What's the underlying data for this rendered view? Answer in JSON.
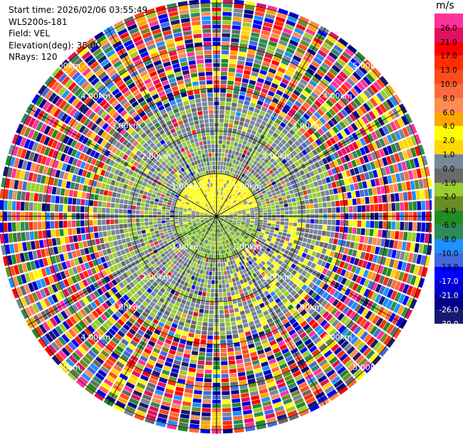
{
  "info": {
    "start_time": "Start time: 2026/02/06 03:55:49",
    "instrument": "WLS200s-181",
    "field": "Field: VEL",
    "elevation": "Elevation(deg): 35.00",
    "nrays": "NRays: 120"
  },
  "colorbar": {
    "unit": "m/s",
    "levels": [
      {
        "label": "26.0",
        "color": "#ff3399"
      },
      {
        "label": "21.0",
        "color": "#e0115f"
      },
      {
        "label": "17.0",
        "color": "#ff0000"
      },
      {
        "label": "13.0",
        "color": "#ff2d00"
      },
      {
        "label": "10.0",
        "color": "#ff4a1c"
      },
      {
        "label": "8.0",
        "color": "#ff6a3d"
      },
      {
        "label": "6.0",
        "color": "#ff8c52"
      },
      {
        "label": "4.0",
        "color": "#ffa500"
      },
      {
        "label": "2.0",
        "color": "#ffff00"
      },
      {
        "label": "1.0",
        "color": "#ffd700"
      },
      {
        "label": "0.0",
        "color": "#778899"
      },
      {
        "label": "-1.0",
        "color": "#696969"
      },
      {
        "label": "-2.0",
        "color": "#9acd32"
      },
      {
        "label": "-4.0",
        "color": "#6b8e23"
      },
      {
        "label": "-6.0",
        "color": "#228b22"
      },
      {
        "label": "-8.0",
        "color": "#2e8b57"
      },
      {
        "label": "-10.0",
        "color": "#1e90ff"
      },
      {
        "label": "-13.0",
        "color": "#4169e1"
      },
      {
        "label": "-17.0",
        "color": "#0000ff"
      },
      {
        "label": "-21.0",
        "color": "#0000cd"
      },
      {
        "label": "-26.0",
        "color": "#00008b"
      },
      {
        "label": "-30.0",
        "color": "#191970"
      }
    ]
  },
  "chart_data": {
    "type": "heatmap",
    "subtype": "polar-ppi",
    "field": "VEL",
    "units": "m/s",
    "nrays": 120,
    "elevation_deg": 35.0,
    "range_rings": [
      {
        "range_km": 1.0,
        "label": "1.00km"
      },
      {
        "range_km": 2.0,
        "label": "2.00km"
      },
      {
        "range_km": 3.0,
        "label": "3.00km"
      },
      {
        "range_km": 4.0,
        "label": "4.00km"
      },
      {
        "range_km": 5.0,
        "label": "5.00km"
      }
    ],
    "max_range_km": 5.1,
    "pattern": {
      "near_positive_zone": {
        "azimuth_center_deg": 0,
        "max_range_km": 1.0,
        "typical_velocity": 2.0
      },
      "near_negative_zone": {
        "azimuth_center_deg": 180,
        "max_range_km": 1.0,
        "typical_velocity": -2.0
      },
      "mid_zone_km": [
        1.0,
        2.8
      ],
      "noise_beyond_km": 2.8
    }
  }
}
